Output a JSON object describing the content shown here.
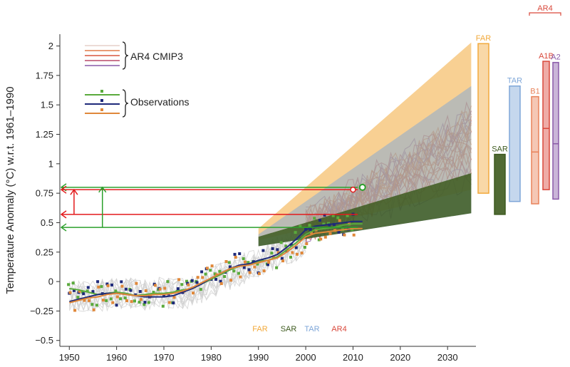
{
  "chart_data": {
    "type": "line",
    "xlabel": "",
    "ylabel": "Temperature Anomaly (°C) w.r.t. 1961–1990",
    "xlim": [
      1948,
      2036
    ],
    "ylim": [
      -0.55,
      2.1
    ],
    "x_ticks": [
      1950,
      1960,
      1970,
      1980,
      1990,
      2000,
      2010,
      2020,
      2030
    ],
    "x_tick_labels": [
      "1950",
      "1960",
      "1970",
      "1980",
      "1990",
      "2000",
      "2010",
      "2020",
      "2030"
    ],
    "y_ticks": [
      -0.5,
      -0.25,
      0,
      0.25,
      0.5,
      0.75,
      1,
      1.25,
      1.5,
      1.75,
      2
    ],
    "y_tick_labels": [
      "−0.5",
      "−0.25",
      "0",
      "0.25",
      "0.5",
      "0.75",
      "1",
      "1.25",
      "1.5",
      "1.75",
      "2"
    ],
    "legend": {
      "position": "top-left",
      "model_label": "AR4 CMIP3",
      "obs_label": "Observations"
    },
    "colors": {
      "far": "#f2a93b",
      "sar": "#3d5a1e",
      "tar": "#7ea6d8",
      "ar4": "#d9483b",
      "a1b": "#d9483b",
      "b1": "#e8825a",
      "a2": "#8a5aa8",
      "obs_green": "#5aaa3c",
      "obs_navy": "#1f2a7a",
      "obs_orange": "#e0883a",
      "annot_red": "#e31a1c",
      "annot_green": "#2ca02c"
    },
    "projection_fans": [
      {
        "name": "FAR",
        "x": [
          1990,
          2035
        ],
        "lower": [
          0.35,
          0.78
        ],
        "upper": [
          0.45,
          2.03
        ]
      },
      {
        "name": "TAR",
        "x": [
          1990,
          2035
        ],
        "lower": [
          0.3,
          0.58
        ],
        "upper": [
          0.4,
          1.66
        ]
      },
      {
        "name": "SAR",
        "x": [
          1990,
          2035
        ],
        "lower": [
          0.3,
          0.58
        ],
        "upper": [
          0.38,
          0.92
        ]
      }
    ],
    "range_bars": [
      {
        "name": "FAR",
        "low": 0.75,
        "high": 2.02,
        "mid": null
      },
      {
        "name": "SAR",
        "low": 0.57,
        "high": 1.08,
        "mid": null
      },
      {
        "name": "TAR",
        "low": 0.68,
        "high": 1.66,
        "mid": null
      },
      {
        "name": "B1",
        "low": 0.66,
        "high": 1.57,
        "mid": 1.1
      },
      {
        "name": "A1B",
        "low": 0.78,
        "high": 1.87,
        "mid": 1.3
      },
      {
        "name": "A2",
        "low": 0.7,
        "high": 1.86,
        "mid": 1.17
      }
    ],
    "range_bar_group_label": "AR4",
    "bottom_labels": [
      "FAR",
      "SAR",
      "TAR",
      "AR4"
    ],
    "observations_smoothed": {
      "x": [
        1950,
        1952,
        1954,
        1956,
        1958,
        1960,
        1962,
        1964,
        1966,
        1968,
        1970,
        1972,
        1974,
        1976,
        1978,
        1980,
        1982,
        1984,
        1986,
        1988,
        1990,
        1992,
        1994,
        1996,
        1998,
        2000,
        2002,
        2004,
        2006,
        2008,
        2010,
        2012
      ],
      "series": [
        {
          "name": "obs-green",
          "values": [
            -0.06,
            -0.07,
            -0.09,
            -0.11,
            -0.1,
            -0.09,
            -0.1,
            -0.12,
            -0.11,
            -0.1,
            -0.1,
            -0.09,
            -0.07,
            -0.06,
            -0.02,
            0.02,
            0.06,
            0.1,
            0.13,
            0.15,
            0.17,
            0.18,
            0.21,
            0.27,
            0.33,
            0.4,
            0.44,
            0.45,
            0.46,
            0.48,
            0.49,
            0.49
          ]
        },
        {
          "name": "obs-navy",
          "values": [
            -0.17,
            -0.15,
            -0.13,
            -0.11,
            -0.1,
            -0.1,
            -0.11,
            -0.12,
            -0.13,
            -0.13,
            -0.13,
            -0.12,
            -0.09,
            -0.06,
            -0.02,
            0.03,
            0.07,
            0.11,
            0.14,
            0.15,
            0.18,
            0.2,
            0.23,
            0.29,
            0.36,
            0.44,
            0.47,
            0.48,
            0.49,
            0.5,
            0.51,
            0.51
          ]
        },
        {
          "name": "obs-orange",
          "values": [
            -0.18,
            -0.16,
            -0.14,
            -0.13,
            -0.11,
            -0.1,
            -0.11,
            -0.12,
            -0.12,
            -0.11,
            -0.11,
            -0.1,
            -0.08,
            -0.05,
            -0.01,
            0.03,
            0.07,
            0.11,
            0.13,
            0.14,
            0.16,
            0.18,
            0.2,
            0.25,
            0.31,
            0.38,
            0.41,
            0.42,
            0.43,
            0.44,
            0.45,
            0.45
          ]
        }
      ]
    },
    "annotations": {
      "red_upper_level": 0.78,
      "red_lower_level": 0.57,
      "green_upper_level": 0.8,
      "green_lower_level": 0.46,
      "red_vertical_x": 1951,
      "green_vertical_x": 1957,
      "line_end_x": 2011,
      "red_marker": {
        "x": 2010,
        "y": 0.78
      },
      "green_marker": {
        "x": 2012,
        "y": 0.8
      }
    }
  }
}
